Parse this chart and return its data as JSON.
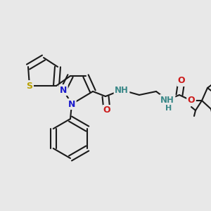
{
  "background_color": "#e8e8e8",
  "bond_color": "#1a1a1a",
  "bond_width": 1.5,
  "atom_colors": {
    "S": "#b8a000",
    "N": "#1a1acc",
    "O": "#cc1a1a",
    "NH": "#3a8888",
    "H": "#3a8888",
    "C": "#1a1a1a"
  },
  "font_size": 8.5
}
